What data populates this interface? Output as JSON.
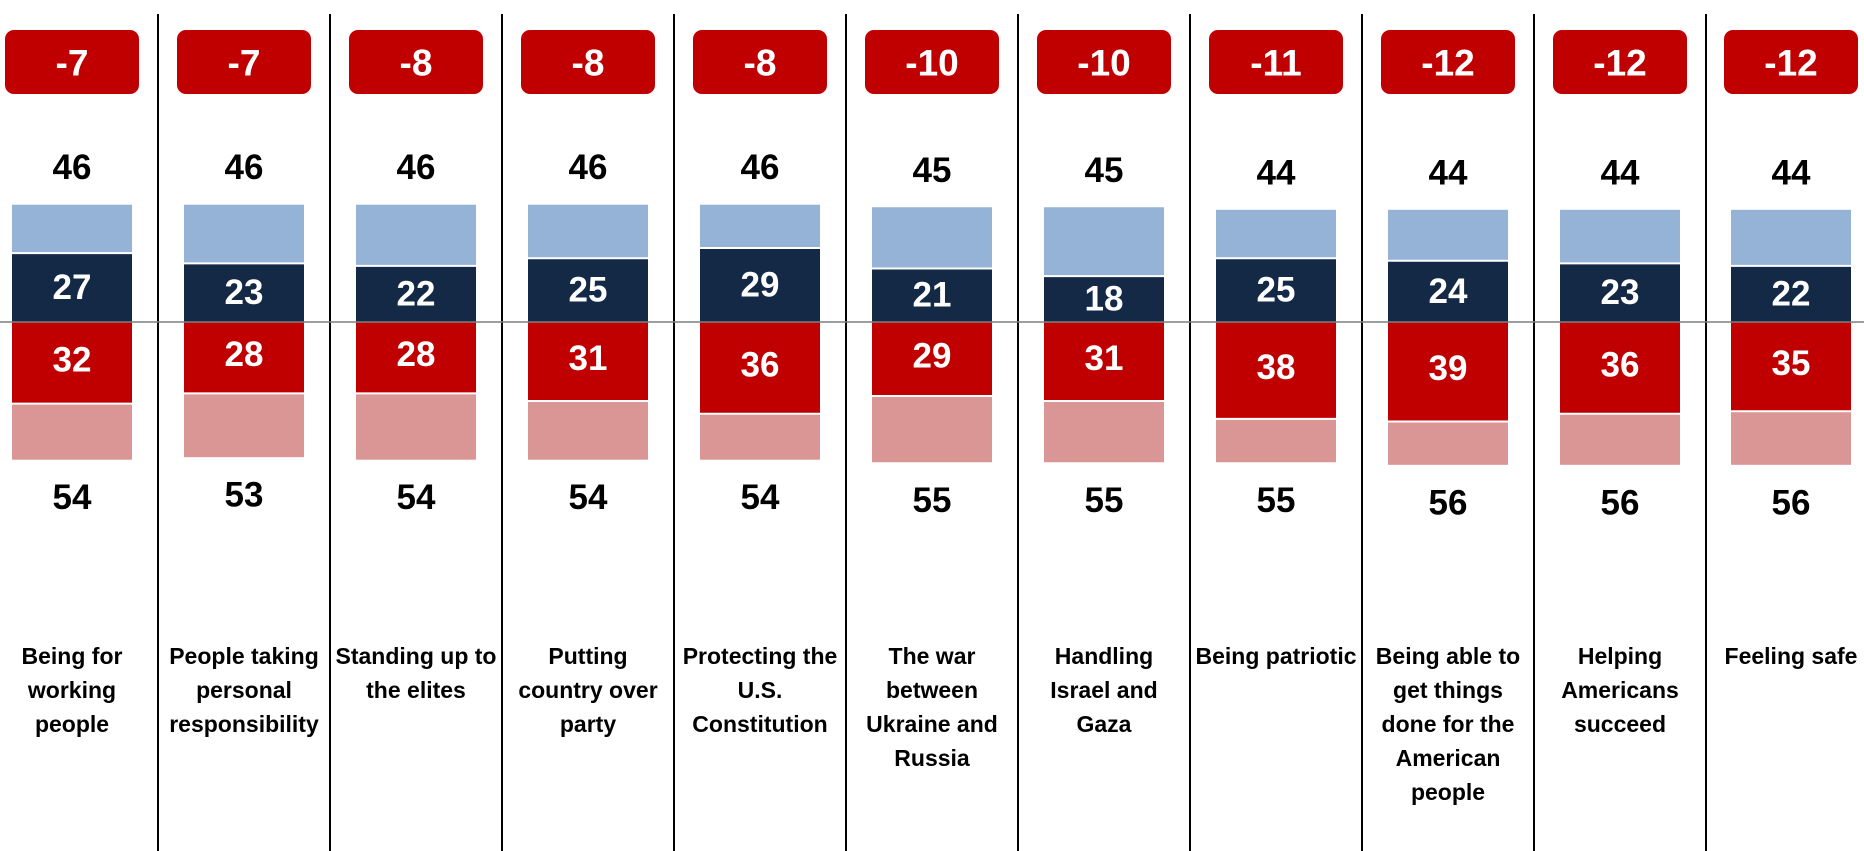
{
  "chart_data": {
    "type": "bar",
    "subtype": "diverging-stacked",
    "title": "",
    "xlabel": "",
    "ylabel": "",
    "grid": false,
    "legend": "none",
    "colors": {
      "top_outer": "#95B3D7",
      "top_inner": "#132946",
      "bottom_inner": "#C00000",
      "bottom_outer": "#DA9694",
      "net_badge": "#C00000",
      "divider": "#000000",
      "baseline": "#7f7f7f"
    },
    "categories": [
      "Being for working people",
      "People taking personal responsibility",
      "Standing up to the elites",
      "Putting country over party",
      "Protecting the U.S. Constitution",
      "The war between Ukraine and Russia",
      "Handling Israel and Gaza",
      "Being patriotic",
      "Being able to get things done for the American people",
      "Helping Americans succeed",
      "Feeling safe"
    ],
    "category_lines": [
      [
        "Being for",
        "working",
        "people"
      ],
      [
        "People taking",
        "personal",
        "responsibility"
      ],
      [
        "Standing up to",
        "the elites"
      ],
      [
        "Putting",
        "country over",
        "party"
      ],
      [
        "Protecting the",
        "U.S.",
        "Constitution"
      ],
      [
        "The war",
        "between",
        "Ukraine and",
        "Russia"
      ],
      [
        "Handling",
        "Israel and",
        "Gaza"
      ],
      [
        "Being patriotic"
      ],
      [
        "Being able to",
        "get things",
        "done for the",
        "American",
        "people"
      ],
      [
        "Helping",
        "Americans",
        "succeed"
      ],
      [
        "Feeling safe"
      ]
    ],
    "net": [
      "-7",
      "-7",
      "-8",
      "-8",
      "-8",
      "-10",
      "-10",
      "-11",
      "-12",
      "-12",
      "-12"
    ],
    "top_total": [
      46,
      46,
      46,
      46,
      46,
      45,
      45,
      44,
      44,
      44,
      44
    ],
    "top_inner": [
      27,
      23,
      22,
      25,
      29,
      21,
      18,
      25,
      24,
      23,
      22
    ],
    "bottom_inner": [
      32,
      28,
      28,
      31,
      36,
      29,
      31,
      38,
      39,
      36,
      35
    ],
    "bottom_total": [
      54,
      53,
      54,
      54,
      54,
      55,
      55,
      55,
      56,
      56,
      56
    ]
  }
}
